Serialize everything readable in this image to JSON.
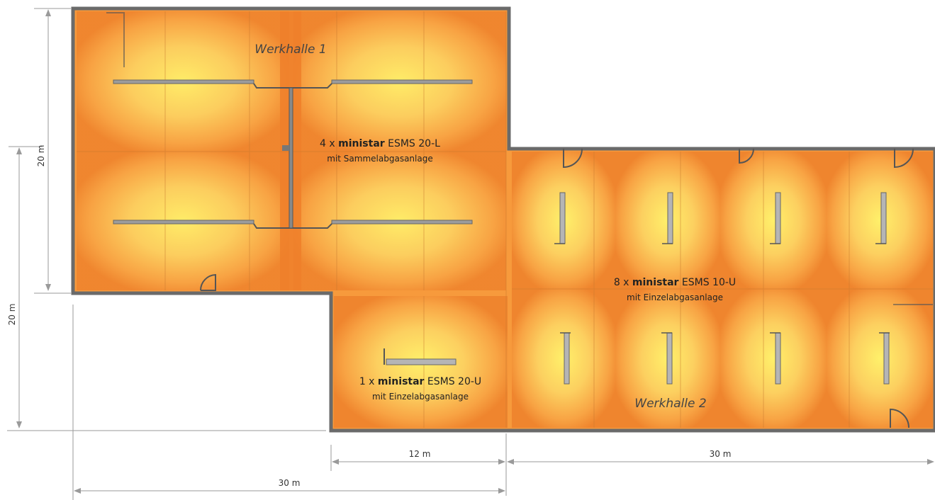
{
  "halls": {
    "hall1": "Werkhalle 1",
    "hall2": "Werkhalle 2"
  },
  "groups": {
    "g1": {
      "count": "4 x ",
      "brand": "ministar",
      "model": " ESMS 20-L",
      "sub": "mit Sammelabgasanlage"
    },
    "g2": {
      "count": "8 x ",
      "brand": "ministar",
      "model": " ESMS 10-U",
      "sub": "mit Einzelabgasanlage"
    },
    "g3": {
      "count": "1 x ",
      "brand": "ministar",
      "model": " ESMS 20-U",
      "sub": "mit Einzelabgasanlage"
    }
  },
  "dimensions": {
    "left_upper": "20 m",
    "left_lower": "20 m",
    "bottom_12": "12 m",
    "bottom_30_right": "30 m",
    "bottom_30_left": "30 m"
  },
  "colors": {
    "hot": "#fff06a",
    "warm": "#fcb84a",
    "base": "#f79a3c",
    "edge": "#ee7f2a"
  }
}
